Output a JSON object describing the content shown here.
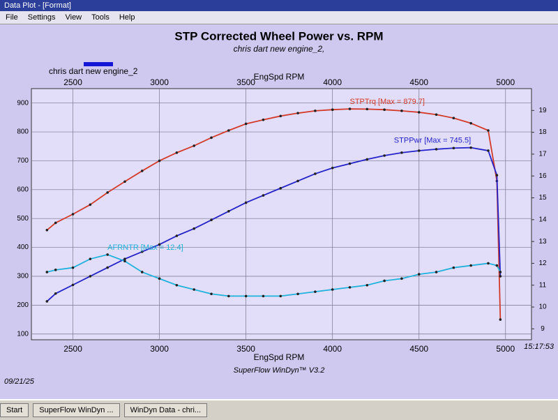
{
  "window": {
    "title": "Data Plot - [Format]",
    "menu": [
      "File",
      "Settings",
      "View",
      "Tools",
      "Help"
    ]
  },
  "chart_data": {
    "type": "line",
    "title": "STP Corrected Wheel Power vs. RPM",
    "subtitle": "chris dart new engine_2,",
    "legend": {
      "name": "chris dart new engine_2",
      "color": "#1515d8"
    },
    "x_label": "EngSpd RPM",
    "x2_label": "EngSpd RPM",
    "x": [
      2350,
      2400,
      2500,
      2600,
      2700,
      2800,
      2900,
      3000,
      3100,
      3200,
      3300,
      3400,
      3500,
      3600,
      3700,
      3800,
      3900,
      4000,
      4100,
      4200,
      4300,
      4400,
      4500,
      4600,
      4700,
      4800,
      4900,
      4950,
      4970
    ],
    "series": [
      {
        "label": "STPTrq [Max = 879.7]",
        "color": "#d43a2a",
        "values": [
          460,
          485,
          515,
          548,
          590,
          628,
          665,
          700,
          728,
          752,
          780,
          805,
          828,
          842,
          855,
          865,
          873,
          877,
          879.7,
          879,
          877,
          873,
          868,
          860,
          848,
          830,
          805,
          630,
          150
        ]
      },
      {
        "label": "STPPwr [Max = 745.5]",
        "color": "#2222c8",
        "values": [
          213,
          240,
          270,
          300,
          330,
          360,
          385,
          410,
          440,
          465,
          495,
          525,
          555,
          580,
          605,
          630,
          655,
          675,
          690,
          705,
          718,
          728,
          735,
          740,
          744,
          745.5,
          735,
          650,
          300
        ]
      },
      {
        "label": "AFRNTR [Max = 12.4]",
        "color": "#1fb2dc",
        "axis": "y2",
        "values": [
          11.6,
          11.7,
          11.8,
          12.2,
          12.4,
          12.1,
          11.6,
          11.3,
          11.0,
          10.8,
          10.6,
          10.5,
          10.5,
          10.5,
          10.5,
          10.6,
          10.7,
          10.8,
          10.9,
          11.0,
          11.2,
          11.3,
          11.5,
          11.6,
          11.8,
          11.9,
          12.0,
          11.9,
          11.6
        ]
      }
    ],
    "xlim": [
      2260,
      5150
    ],
    "xticks": [
      2500,
      3000,
      3500,
      4000,
      4500,
      5000
    ],
    "ylim": [
      80,
      950
    ],
    "yticks": [
      100,
      200,
      300,
      400,
      500,
      600,
      700,
      800,
      900
    ],
    "y2lim": [
      8.5,
      20
    ],
    "y2ticks": [
      9,
      10,
      11,
      12,
      13,
      14,
      15,
      16,
      17,
      18,
      19
    ],
    "grid": true
  },
  "footer": {
    "app": "SuperFlow WinDyn™ V3.2",
    "date": "09/21/25",
    "time": "15:17:53"
  },
  "taskbar": {
    "start": "Start",
    "items": [
      "SuperFlow WinDyn ...",
      "WinDyn Data - chri..."
    ]
  }
}
